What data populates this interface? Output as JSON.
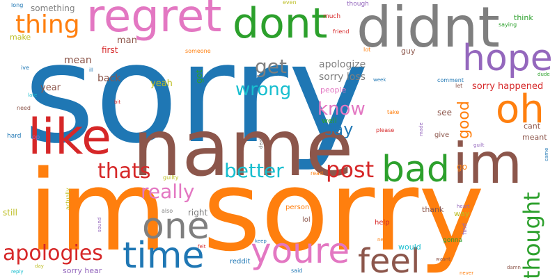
{
  "palette": {
    "blue": "#1f77b4",
    "orange": "#ff7f0e",
    "green": "#2ca02c",
    "red": "#d62728",
    "purple": "#9467bd",
    "brown": "#8c564b",
    "pink": "#e377c2",
    "gray": "#7f7f7f",
    "olive": "#bcbd22",
    "cyan": "#17becf"
  },
  "words": [
    {
      "text": "sorry",
      "color": "blue"
    },
    {
      "text": "im sorry",
      "color": "orange"
    },
    {
      "text": "name",
      "color": "brown"
    },
    {
      "text": "didnt",
      "color": "gray"
    },
    {
      "text": "regret",
      "color": "pink"
    },
    {
      "text": "dont",
      "color": "green"
    },
    {
      "text": "like",
      "color": "red"
    },
    {
      "text": "im",
      "color": "brown"
    },
    {
      "text": "oh",
      "color": "orange"
    },
    {
      "text": "hope",
      "color": "purple"
    },
    {
      "text": "bad",
      "color": "green"
    },
    {
      "text": "one",
      "color": "gray"
    },
    {
      "text": "time",
      "color": "blue"
    },
    {
      "text": "youre",
      "color": "pink"
    },
    {
      "text": "feel",
      "color": "brown"
    },
    {
      "text": "thing",
      "color": "orange"
    },
    {
      "text": "thought",
      "color": "green"
    },
    {
      "text": "post",
      "color": "red"
    },
    {
      "text": "apologies",
      "color": "red"
    },
    {
      "text": "thats",
      "color": "red"
    },
    {
      "text": "better",
      "color": "cyan"
    },
    {
      "text": "really",
      "color": "pink"
    },
    {
      "text": "wrong",
      "color": "cyan"
    },
    {
      "text": "know",
      "color": "pink"
    },
    {
      "text": "say",
      "color": "blue"
    },
    {
      "text": "get",
      "color": "gray"
    },
    {
      "text": "good",
      "color": "orange"
    },
    {
      "text": "apologize",
      "color": "gray"
    },
    {
      "text": "sorry loss",
      "color": "gray"
    },
    {
      "text": "sorry happened",
      "color": "red"
    },
    {
      "text": "something",
      "color": "gray"
    },
    {
      "text": "mean",
      "color": "brown"
    },
    {
      "text": "back",
      "color": "brown"
    },
    {
      "text": "year",
      "color": "brown"
    },
    {
      "text": "yeah",
      "color": "olive"
    },
    {
      "text": "got",
      "color": "green"
    },
    {
      "text": "man",
      "color": "brown"
    },
    {
      "text": "first",
      "color": "red"
    },
    {
      "text": "make",
      "color": "olive"
    },
    {
      "text": "people",
      "color": "pink"
    },
    {
      "text": "well",
      "color": "green"
    },
    {
      "text": "see",
      "color": "brown"
    },
    {
      "text": "guy",
      "color": "brown"
    },
    {
      "text": "think",
      "color": "green"
    },
    {
      "text": "cant",
      "color": "brown"
    },
    {
      "text": "meant",
      "color": "brown"
    },
    {
      "text": "go",
      "color": "orange"
    },
    {
      "text": "give",
      "color": "brown"
    },
    {
      "text": "right",
      "color": "gray"
    },
    {
      "text": "still",
      "color": "olive"
    },
    {
      "text": "thank",
      "color": "brown"
    },
    {
      "text": "way",
      "color": "olive"
    },
    {
      "text": "help",
      "color": "red"
    },
    {
      "text": "would",
      "color": "cyan"
    },
    {
      "text": "lol",
      "color": "brown"
    },
    {
      "text": "person",
      "color": "orange"
    },
    {
      "text": "sorry hear",
      "color": "purple"
    },
    {
      "text": "reddit",
      "color": "blue"
    },
    {
      "text": "gonna",
      "color": "green"
    },
    {
      "text": "find",
      "color": "purple"
    },
    {
      "text": "guilty",
      "color": "olive"
    },
    {
      "text": "much",
      "color": "red"
    },
    {
      "text": "though",
      "color": "purple"
    },
    {
      "text": "even",
      "color": "olive"
    },
    {
      "text": "friend",
      "color": "red"
    },
    {
      "text": "lot",
      "color": "orange"
    },
    {
      "text": "someone",
      "color": "orange"
    },
    {
      "text": "saying",
      "color": "green"
    },
    {
      "text": "long",
      "color": "blue"
    },
    {
      "text": "ive",
      "color": "blue"
    },
    {
      "text": "ill",
      "color": "blue"
    },
    {
      "text": "late",
      "color": "cyan"
    },
    {
      "text": "need",
      "color": "brown"
    },
    {
      "text": "hard",
      "color": "blue"
    },
    {
      "text": "op",
      "color": "purple"
    },
    {
      "text": "bit",
      "color": "red"
    },
    {
      "text": "comment",
      "color": "blue"
    },
    {
      "text": "week",
      "color": "blue"
    },
    {
      "text": "let",
      "color": "brown"
    },
    {
      "text": "dude",
      "color": "green"
    },
    {
      "text": "take",
      "color": "orange"
    },
    {
      "text": "please",
      "color": "red"
    },
    {
      "text": "made",
      "color": "purple"
    },
    {
      "text": "guilt",
      "color": "purple"
    },
    {
      "text": "came",
      "color": "blue"
    },
    {
      "text": "deal",
      "color": "gray"
    },
    {
      "text": "read",
      "color": "orange"
    },
    {
      "text": "also",
      "color": "gray"
    },
    {
      "text": "sound",
      "color": "purple"
    },
    {
      "text": "actually",
      "color": "olive"
    },
    {
      "text": "heart",
      "color": "purple"
    },
    {
      "text": "felt",
      "color": "red"
    },
    {
      "text": "keep",
      "color": "blue"
    },
    {
      "text": "new",
      "color": "orange"
    },
    {
      "text": "wasnt",
      "color": "brown"
    },
    {
      "text": "said",
      "color": "blue"
    },
    {
      "text": "day",
      "color": "olive"
    },
    {
      "text": "reply",
      "color": "cyan"
    },
    {
      "text": "never",
      "color": "orange"
    },
    {
      "text": "damn",
      "color": "brown"
    }
  ]
}
